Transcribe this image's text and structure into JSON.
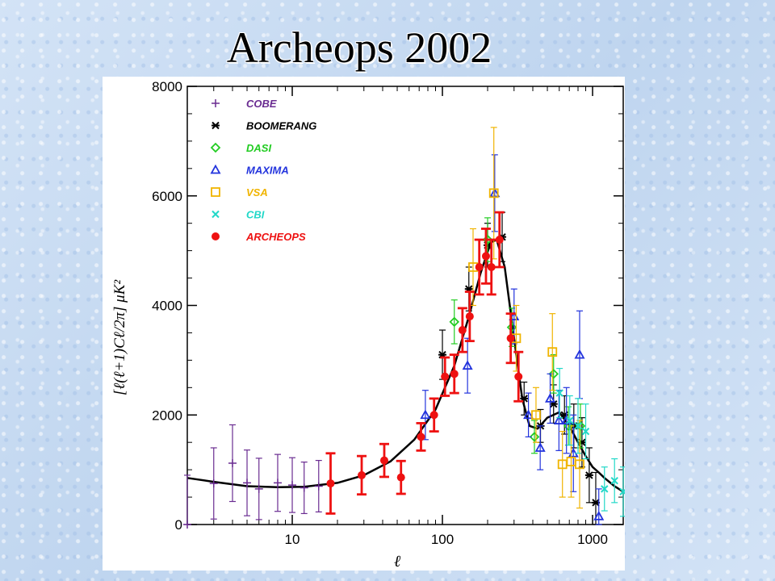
{
  "slide": {
    "title": "Archeops 2002"
  },
  "chart_data": {
    "type": "scatter",
    "xscale": "log",
    "xlim": [
      2,
      1600
    ],
    "ylim": [
      0,
      8000
    ],
    "xlabel": "ℓ",
    "ylabel": "[ℓ(ℓ+1)Cℓ/2π] μK²",
    "x_ticks": [
      10,
      100,
      1000
    ],
    "y_ticks": [
      0,
      2000,
      4000,
      6000,
      8000
    ],
    "grid": false,
    "legend_position": "top-left",
    "model_curve": {
      "x": [
        2,
        3,
        5,
        8,
        12,
        20,
        30,
        45,
        65,
        90,
        120,
        150,
        180,
        210,
        230,
        260,
        300,
        340,
        380,
        430,
        500,
        600,
        700,
        800,
        900,
        1000,
        1100,
        1200,
        1400,
        1600
      ],
      "y": [
        850,
        780,
        700,
        680,
        690,
        760,
        900,
        1150,
        1550,
        2100,
        2900,
        3800,
        4600,
        5150,
        5200,
        4700,
        3400,
        2300,
        1800,
        1750,
        1950,
        2050,
        1800,
        1500,
        1250,
        1050,
        950,
        850,
        700,
        600
      ]
    },
    "series": [
      {
        "name": "COBE",
        "color": "#6a2c91",
        "marker": "plus",
        "points": [
          {
            "x": 2,
            "y": 0,
            "err": 900
          },
          {
            "x": 3,
            "y": 750,
            "err": 650
          },
          {
            "x": 4,
            "y": 1120,
            "err": 700
          },
          {
            "x": 5,
            "y": 760,
            "err": 600
          },
          {
            "x": 6,
            "y": 650,
            "err": 560
          },
          {
            "x": 8,
            "y": 760,
            "err": 520
          },
          {
            "x": 10,
            "y": 720,
            "err": 500
          },
          {
            "x": 12,
            "y": 670,
            "err": 470
          },
          {
            "x": 15,
            "y": 700,
            "err": 470
          }
        ]
      },
      {
        "name": "BOOMERANG",
        "color": "#000000",
        "marker": "asterisk",
        "points": [
          {
            "x": 100,
            "y": 3100,
            "err": 450
          },
          {
            "x": 150,
            "y": 4300,
            "err": 400
          },
          {
            "x": 200,
            "y": 5100,
            "err": 400
          },
          {
            "x": 250,
            "y": 5250,
            "err": 450
          },
          {
            "x": 350,
            "y": 2300,
            "err": 300
          },
          {
            "x": 450,
            "y": 1800,
            "err": 300
          },
          {
            "x": 550,
            "y": 2200,
            "err": 350
          },
          {
            "x": 650,
            "y": 2000,
            "err": 350
          },
          {
            "x": 750,
            "y": 1800,
            "err": 400
          },
          {
            "x": 850,
            "y": 1500,
            "err": 450
          },
          {
            "x": 950,
            "y": 900,
            "err": 500
          },
          {
            "x": 1050,
            "y": 400,
            "err": 550
          }
        ]
      },
      {
        "name": "DASI",
        "color": "#22cc22",
        "marker": "diamond",
        "points": [
          {
            "x": 120,
            "y": 3700,
            "err": 400
          },
          {
            "x": 200,
            "y": 5200,
            "err": 400
          },
          {
            "x": 290,
            "y": 3600,
            "err": 350
          },
          {
            "x": 410,
            "y": 1600,
            "err": 300
          },
          {
            "x": 550,
            "y": 2750,
            "err": 350
          },
          {
            "x": 690,
            "y": 1800,
            "err": 350
          },
          {
            "x": 830,
            "y": 1800,
            "err": 400
          }
        ]
      },
      {
        "name": "MAXIMA",
        "color": "#2233dd",
        "marker": "triangle",
        "points": [
          {
            "x": 77,
            "y": 2000,
            "err": 450
          },
          {
            "x": 147,
            "y": 2900,
            "err": 500
          },
          {
            "x": 223,
            "y": 6050,
            "err": 700
          },
          {
            "x": 300,
            "y": 3800,
            "err": 500
          },
          {
            "x": 374,
            "y": 2000,
            "err": 400
          },
          {
            "x": 448,
            "y": 1400,
            "err": 400
          },
          {
            "x": 522,
            "y": 2300,
            "err": 450
          },
          {
            "x": 597,
            "y": 1900,
            "err": 550
          },
          {
            "x": 670,
            "y": 1900,
            "err": 600
          },
          {
            "x": 745,
            "y": 1300,
            "err": 700
          },
          {
            "x": 820,
            "y": 3100,
            "err": 800
          },
          {
            "x": 1100,
            "y": 150,
            "err": 500
          }
        ]
      },
      {
        "name": "VSA",
        "color": "#f0b400",
        "marker": "square",
        "points": [
          {
            "x": 160,
            "y": 4700,
            "err": 700
          },
          {
            "x": 220,
            "y": 6050,
            "err": 1200
          },
          {
            "x": 310,
            "y": 3400,
            "err": 600
          },
          {
            "x": 420,
            "y": 2000,
            "err": 500
          },
          {
            "x": 540,
            "y": 3150,
            "err": 700
          },
          {
            "x": 630,
            "y": 1100,
            "err": 600
          },
          {
            "x": 720,
            "y": 1150,
            "err": 650
          },
          {
            "x": 820,
            "y": 1100,
            "err": 800
          }
        ]
      },
      {
        "name": "CBI",
        "color": "#22d8c8",
        "marker": "x",
        "points": [
          {
            "x": 603,
            "y": 2400,
            "err": 450
          },
          {
            "x": 705,
            "y": 1900,
            "err": 450
          },
          {
            "x": 800,
            "y": 1800,
            "err": 500
          },
          {
            "x": 900,
            "y": 1700,
            "err": 500
          },
          {
            "x": 1200,
            "y": 650,
            "err": 400
          },
          {
            "x": 1400,
            "y": 800,
            "err": 400
          },
          {
            "x": 1600,
            "y": 600,
            "err": 450
          }
        ]
      },
      {
        "name": "ARCHEOPS",
        "color": "#ee1111",
        "marker": "dot",
        "points": [
          {
            "x": 18,
            "y": 750,
            "err": 550
          },
          {
            "x": 29,
            "y": 900,
            "err": 350
          },
          {
            "x": 41,
            "y": 1170,
            "err": 300
          },
          {
            "x": 53,
            "y": 860,
            "err": 300
          },
          {
            "x": 72,
            "y": 1600,
            "err": 250
          },
          {
            "x": 88,
            "y": 2000,
            "err": 300
          },
          {
            "x": 104,
            "y": 2700,
            "err": 350
          },
          {
            "x": 120,
            "y": 2750,
            "err": 350
          },
          {
            "x": 136,
            "y": 3550,
            "err": 400
          },
          {
            "x": 152,
            "y": 3800,
            "err": 450
          },
          {
            "x": 176,
            "y": 4700,
            "err": 500
          },
          {
            "x": 195,
            "y": 4900,
            "err": 500
          },
          {
            "x": 212,
            "y": 4700,
            "err": 500
          },
          {
            "x": 240,
            "y": 5200,
            "err": 500
          },
          {
            "x": 285,
            "y": 3400,
            "err": 450
          },
          {
            "x": 321,
            "y": 2700,
            "err": 450
          }
        ]
      }
    ]
  }
}
